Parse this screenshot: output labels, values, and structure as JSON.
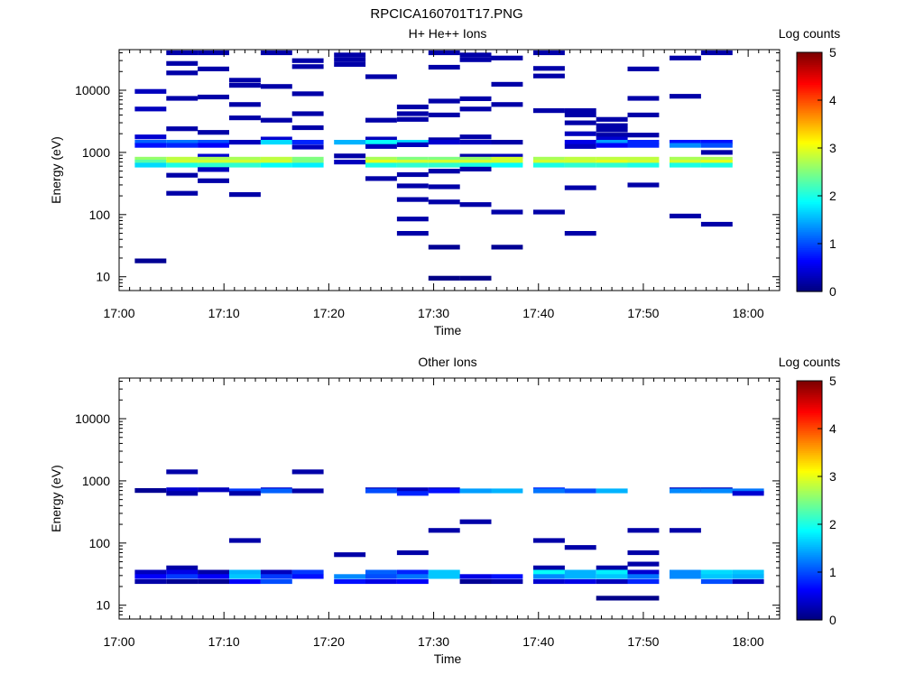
{
  "figure_title": "RPCICA160701T17.PNG",
  "colors": {
    "background": "#ffffff",
    "empty": "#ffffff",
    "axis": "#000000"
  },
  "chart_data": [
    {
      "type": "heatmap",
      "title": "H+ He++ Ions",
      "xlabel": "Time",
      "ylabel": "Energy (eV)",
      "x_ticks": [
        "17:00",
        "17:10",
        "17:20",
        "17:30",
        "17:40",
        "17:50",
        "18:00"
      ],
      "y_ticks": [
        "10",
        "100",
        "1000",
        "10000"
      ],
      "xlim": [
        "17:00",
        "18:03"
      ],
      "ylim": [
        6,
        45000
      ],
      "y_scale": "log",
      "colorbar": {
        "label": "Log counts",
        "ticks": [
          "0",
          "1",
          "2",
          "3",
          "4",
          "5"
        ],
        "range": [
          0,
          5
        ],
        "colormap": "jet"
      },
      "time_bins": [
        "17:03",
        "17:06",
        "17:09",
        "17:12",
        "17:15",
        "17:18",
        "17:22",
        "17:25",
        "17:28",
        "17:31",
        "17:34",
        "17:37",
        "17:41",
        "17:44",
        "17:47",
        "17:50",
        "17:54",
        "17:57",
        "18:00"
      ],
      "cells": [
        [
          0,
          9600,
          0.3
        ],
        [
          0,
          5000,
          0.3
        ],
        [
          0,
          1780,
          0.4
        ],
        [
          0,
          1460,
          1.1
        ],
        [
          0,
          1300,
          0.7
        ],
        [
          0,
          780,
          2.6
        ],
        [
          0,
          700,
          2.3
        ],
        [
          0,
          625,
          1.7
        ],
        [
          0,
          18,
          0.1
        ],
        [
          1,
          40000,
          0.2
        ],
        [
          1,
          27000,
          0.2
        ],
        [
          1,
          19000,
          0.2
        ],
        [
          1,
          7400,
          0.2
        ],
        [
          1,
          2400,
          0.2
        ],
        [
          1,
          1460,
          1.2
        ],
        [
          1,
          1300,
          0.8
        ],
        [
          1,
          780,
          2.8
        ],
        [
          1,
          700,
          2.9
        ],
        [
          1,
          625,
          2.0
        ],
        [
          1,
          430,
          0.2
        ],
        [
          1,
          220,
          0.2
        ],
        [
          2,
          40000,
          0.2
        ],
        [
          2,
          22000,
          0.2
        ],
        [
          2,
          7800,
          0.2
        ],
        [
          2,
          2100,
          0.2
        ],
        [
          2,
          1460,
          1.0
        ],
        [
          2,
          1300,
          0.6
        ],
        [
          2,
          870,
          0.4
        ],
        [
          2,
          780,
          2.7
        ],
        [
          2,
          700,
          2.9
        ],
        [
          2,
          625,
          2.1
        ],
        [
          2,
          530,
          0.3
        ],
        [
          2,
          350,
          0.2
        ],
        [
          3,
          14500,
          0.2
        ],
        [
          3,
          12000,
          0.2
        ],
        [
          3,
          5900,
          0.2
        ],
        [
          3,
          3600,
          0.2
        ],
        [
          3,
          1460,
          0.3
        ],
        [
          3,
          780,
          2.7
        ],
        [
          3,
          700,
          2.9
        ],
        [
          3,
          625,
          2.1
        ],
        [
          3,
          210,
          0.2
        ],
        [
          4,
          40000,
          0.2
        ],
        [
          4,
          11500,
          0.2
        ],
        [
          4,
          3300,
          0.2
        ],
        [
          4,
          1640,
          0.4
        ],
        [
          4,
          1460,
          1.7
        ],
        [
          4,
          780,
          2.8
        ],
        [
          4,
          700,
          2.9
        ],
        [
          4,
          625,
          1.9
        ],
        [
          5,
          30000,
          0.2
        ],
        [
          5,
          24000,
          0.2
        ],
        [
          5,
          8800,
          0.2
        ],
        [
          5,
          4200,
          0.2
        ],
        [
          5,
          2500,
          0.2
        ],
        [
          5,
          1460,
          0.8
        ],
        [
          5,
          1220,
          0.3
        ],
        [
          5,
          780,
          2.5
        ],
        [
          5,
          700,
          2.5
        ],
        [
          5,
          625,
          1.8
        ],
        [
          6,
          37000,
          0.2
        ],
        [
          6,
          31000,
          0.2
        ],
        [
          6,
          26000,
          0.2
        ],
        [
          6,
          1460,
          1.5
        ],
        [
          6,
          880,
          0.2
        ],
        [
          6,
          700,
          0.3
        ],
        [
          7,
          16500,
          0.2
        ],
        [
          7,
          3300,
          0.2
        ],
        [
          7,
          1640,
          0.3
        ],
        [
          7,
          1460,
          1.9
        ],
        [
          7,
          1250,
          0.3
        ],
        [
          7,
          780,
          2.7
        ],
        [
          7,
          700,
          3.0
        ],
        [
          7,
          625,
          2.0
        ],
        [
          7,
          380,
          0.2
        ],
        [
          8,
          5400,
          0.2
        ],
        [
          8,
          4200,
          0.2
        ],
        [
          8,
          3400,
          0.2
        ],
        [
          8,
          1460,
          1.7
        ],
        [
          8,
          1330,
          0.3
        ],
        [
          8,
          780,
          2.5
        ],
        [
          8,
          700,
          2.9
        ],
        [
          8,
          625,
          2.1
        ],
        [
          8,
          440,
          0.2
        ],
        [
          8,
          290,
          0.2
        ],
        [
          8,
          175,
          0.2
        ],
        [
          8,
          85,
          0.2
        ],
        [
          8,
          50,
          0.2
        ],
        [
          9,
          40000,
          0.2
        ],
        [
          9,
          23500,
          0.2
        ],
        [
          9,
          6700,
          0.2
        ],
        [
          9,
          4000,
          0.2
        ],
        [
          9,
          1600,
          0.2
        ],
        [
          9,
          1460,
          0.4
        ],
        [
          9,
          780,
          2.5
        ],
        [
          9,
          700,
          2.9
        ],
        [
          9,
          625,
          2.1
        ],
        [
          9,
          500,
          0.2
        ],
        [
          9,
          280,
          0.2
        ],
        [
          9,
          160,
          0.2
        ],
        [
          9,
          30,
          0.1
        ],
        [
          9,
          9.5,
          0.03
        ],
        [
          10,
          37000,
          0.2
        ],
        [
          10,
          31000,
          0.2
        ],
        [
          10,
          7300,
          0.2
        ],
        [
          10,
          5000,
          0.2
        ],
        [
          10,
          1780,
          0.2
        ],
        [
          10,
          1460,
          0.3
        ],
        [
          10,
          870,
          0.2
        ],
        [
          10,
          780,
          2.6
        ],
        [
          10,
          700,
          2.9
        ],
        [
          10,
          625,
          2.0
        ],
        [
          10,
          540,
          0.2
        ],
        [
          10,
          145,
          0.2
        ],
        [
          10,
          9.5,
          0.03
        ],
        [
          11,
          33000,
          0.2
        ],
        [
          11,
          12500,
          0.2
        ],
        [
          11,
          5900,
          0.2
        ],
        [
          11,
          1460,
          0.2
        ],
        [
          11,
          870,
          0.3
        ],
        [
          11,
          780,
          2.9
        ],
        [
          11,
          700,
          2.9
        ],
        [
          11,
          625,
          1.9
        ],
        [
          11,
          110,
          0.2
        ],
        [
          11,
          30,
          0.1
        ],
        [
          12,
          40000,
          0.2
        ],
        [
          12,
          22500,
          0.2
        ],
        [
          12,
          17000,
          0.2
        ],
        [
          12,
          4700,
          0.2
        ],
        [
          12,
          780,
          2.7
        ],
        [
          12,
          700,
          2.9
        ],
        [
          12,
          625,
          2.0
        ],
        [
          12,
          110,
          0.2
        ],
        [
          13,
          4700,
          0.2
        ],
        [
          13,
          4000,
          0.2
        ],
        [
          13,
          3000,
          0.2
        ],
        [
          13,
          2000,
          0.3
        ],
        [
          13,
          1460,
          0.5
        ],
        [
          13,
          1250,
          0.3
        ],
        [
          13,
          780,
          2.8
        ],
        [
          13,
          700,
          2.9
        ],
        [
          13,
          625,
          2.1
        ],
        [
          13,
          270,
          0.2
        ],
        [
          13,
          50,
          0.2
        ],
        [
          14,
          3400,
          0.2
        ],
        [
          14,
          2700,
          0.2
        ],
        [
          14,
          2300,
          0.2
        ],
        [
          14,
          1900,
          0.2
        ],
        [
          14,
          1640,
          0.4
        ],
        [
          14,
          1460,
          1.4
        ],
        [
          14,
          1300,
          0.6
        ],
        [
          14,
          780,
          2.8
        ],
        [
          14,
          700,
          3.0
        ],
        [
          14,
          625,
          2.1
        ],
        [
          15,
          22000,
          0.2
        ],
        [
          15,
          7400,
          0.2
        ],
        [
          15,
          4000,
          0.2
        ],
        [
          15,
          1900,
          0.2
        ],
        [
          15,
          1460,
          0.8
        ],
        [
          15,
          1300,
          0.8
        ],
        [
          15,
          780,
          2.8
        ],
        [
          15,
          700,
          2.9
        ],
        [
          15,
          625,
          2.0
        ],
        [
          15,
          300,
          0.2
        ],
        [
          16,
          33000,
          0.2
        ],
        [
          16,
          8000,
          0.2
        ],
        [
          16,
          1460,
          0.7
        ],
        [
          16,
          1300,
          1.3
        ],
        [
          16,
          780,
          2.7
        ],
        [
          16,
          700,
          2.9
        ],
        [
          16,
          625,
          2.0
        ],
        [
          16,
          95,
          0.2
        ],
        [
          17,
          40000,
          0.2
        ],
        [
          17,
          1460,
          0.7
        ],
        [
          17,
          1300,
          1.0
        ],
        [
          17,
          1000,
          0.2
        ],
        [
          17,
          780,
          2.7
        ],
        [
          17,
          700,
          3.0
        ],
        [
          17,
          625,
          2.0
        ],
        [
          17,
          70,
          0.2
        ]
      ]
    },
    {
      "type": "heatmap",
      "title": "Other Ions",
      "xlabel": "Time",
      "ylabel": "Energy (eV)",
      "x_ticks": [
        "17:00",
        "17:10",
        "17:20",
        "17:30",
        "17:40",
        "17:50",
        "18:00"
      ],
      "y_ticks": [
        "10",
        "100",
        "1000",
        "10000"
      ],
      "xlim": [
        "17:00",
        "18:03"
      ],
      "ylim": [
        6,
        45000
      ],
      "y_scale": "log",
      "colorbar": {
        "label": "Log counts",
        "ticks": [
          "0",
          "1",
          "2",
          "3",
          "4",
          "5"
        ],
        "range": [
          0,
          5
        ],
        "colormap": "jet"
      },
      "time_bins": [
        "17:03",
        "17:06",
        "17:09",
        "17:12",
        "17:15",
        "17:18",
        "17:22",
        "17:25",
        "17:28",
        "17:31",
        "17:34",
        "17:37",
        "17:41",
        "17:44",
        "17:47",
        "17:50",
        "17:54",
        "17:57",
        "18:00"
      ],
      "cells": [
        [
          0,
          700,
          0.1
        ],
        [
          0,
          34,
          0.3
        ],
        [
          0,
          29,
          0.6
        ],
        [
          0,
          24,
          0.2
        ],
        [
          1,
          1400,
          0.2
        ],
        [
          1,
          720,
          0.4
        ],
        [
          1,
          630,
          0.2
        ],
        [
          1,
          40,
          0.2
        ],
        [
          1,
          34,
          0.5
        ],
        [
          1,
          29,
          0.9
        ],
        [
          1,
          24,
          0.1
        ],
        [
          2,
          720,
          0.3
        ],
        [
          2,
          34,
          0.2
        ],
        [
          2,
          29,
          0.6
        ],
        [
          2,
          24,
          0.1
        ],
        [
          3,
          690,
          0.9
        ],
        [
          3,
          630,
          0.2
        ],
        [
          3,
          110,
          0.2
        ],
        [
          3,
          34,
          1.5
        ],
        [
          3,
          29,
          1.6
        ],
        [
          3,
          24,
          0.6
        ],
        [
          4,
          720,
          0.4
        ],
        [
          4,
          690,
          1.1
        ],
        [
          4,
          34,
          0.3
        ],
        [
          4,
          29,
          0.9
        ],
        [
          4,
          24,
          1.0
        ],
        [
          5,
          1400,
          0.2
        ],
        [
          5,
          690,
          0.2
        ],
        [
          5,
          34,
          0.9
        ],
        [
          5,
          29,
          0.7
        ],
        [
          6,
          65,
          0.2
        ],
        [
          6,
          29,
          1.3
        ],
        [
          6,
          24,
          0.7
        ],
        [
          7,
          720,
          0.3
        ],
        [
          7,
          690,
          1.0
        ],
        [
          7,
          34,
          1.1
        ],
        [
          7,
          29,
          1.0
        ],
        [
          7,
          24,
          0.5
        ],
        [
          8,
          720,
          0.3
        ],
        [
          8,
          630,
          0.8
        ],
        [
          8,
          70,
          0.2
        ],
        [
          8,
          34,
          0.8
        ],
        [
          8,
          29,
          1.2
        ],
        [
          8,
          24,
          0.6
        ],
        [
          9,
          720,
          0.3
        ],
        [
          9,
          690,
          0.7
        ],
        [
          9,
          160,
          0.2
        ],
        [
          9,
          34,
          1.6
        ],
        [
          9,
          29,
          1.6
        ],
        [
          10,
          690,
          1.4
        ],
        [
          10,
          220,
          0.2
        ],
        [
          10,
          29,
          0.5
        ],
        [
          10,
          24,
          0.1
        ],
        [
          11,
          690,
          1.5
        ],
        [
          11,
          29,
          0.7
        ],
        [
          11,
          24,
          0.2
        ],
        [
          12,
          720,
          0.8
        ],
        [
          12,
          690,
          1.2
        ],
        [
          12,
          110,
          0.2
        ],
        [
          12,
          40,
          0.2
        ],
        [
          12,
          34,
          1.9
        ],
        [
          12,
          29,
          1.3
        ],
        [
          12,
          24,
          0.4
        ],
        [
          13,
          690,
          1.0
        ],
        [
          13,
          85,
          0.2
        ],
        [
          13,
          34,
          1.5
        ],
        [
          13,
          29,
          1.5
        ],
        [
          13,
          24,
          0.5
        ],
        [
          14,
          690,
          1.5
        ],
        [
          14,
          40,
          0.2
        ],
        [
          14,
          34,
          1.8
        ],
        [
          14,
          29,
          1.6
        ],
        [
          14,
          24,
          0.3
        ],
        [
          14,
          13,
          0.05
        ],
        [
          15,
          160,
          0.2
        ],
        [
          15,
          70,
          0.2
        ],
        [
          15,
          46,
          0.2
        ],
        [
          15,
          34,
          0.4
        ],
        [
          15,
          29,
          1.2
        ],
        [
          15,
          24,
          0.8
        ],
        [
          15,
          13,
          0.05
        ],
        [
          16,
          720,
          0.3
        ],
        [
          16,
          690,
          1.3
        ],
        [
          16,
          160,
          0.2
        ],
        [
          16,
          34,
          1.3
        ],
        [
          16,
          29,
          1.3
        ],
        [
          17,
          720,
          0.3
        ],
        [
          17,
          690,
          1.3
        ],
        [
          17,
          34,
          1.7
        ],
        [
          17,
          29,
          1.6
        ],
        [
          17,
          24,
          1.0
        ],
        [
          18,
          690,
          1.2
        ],
        [
          18,
          630,
          0.4
        ],
        [
          18,
          34,
          1.6
        ],
        [
          18,
          29,
          1.5
        ],
        [
          18,
          24,
          0.3
        ]
      ]
    }
  ]
}
